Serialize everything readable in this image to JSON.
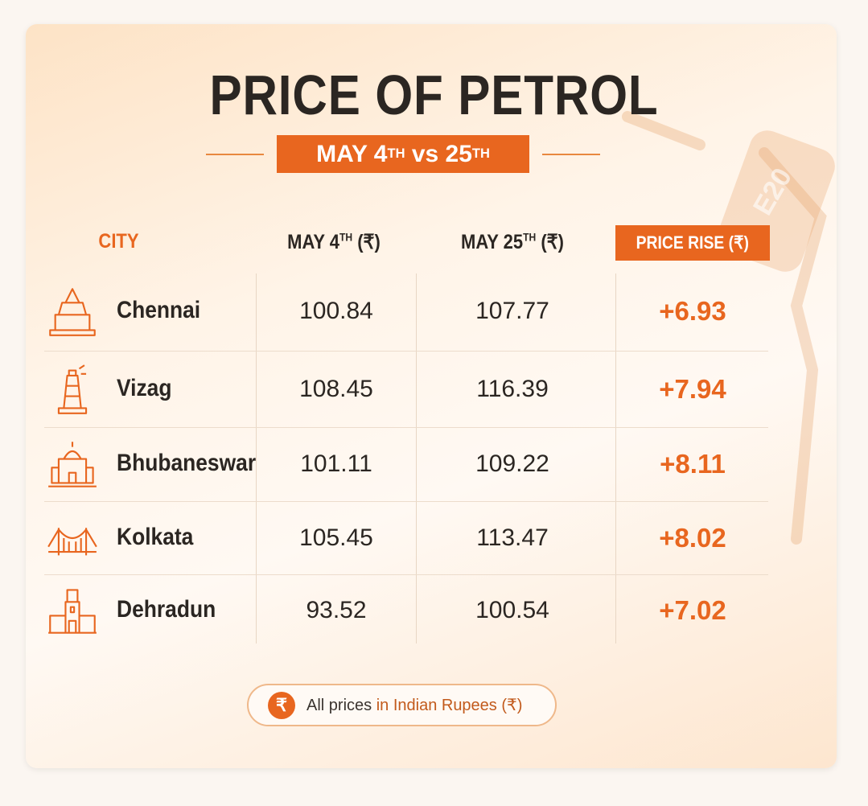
{
  "header": {
    "title": "PRICE OF PETROL",
    "subtitle": [
      "MAY 4",
      "TH",
      " vs 25",
      "TH"
    ]
  },
  "decoration": {
    "pump_label": "E20"
  },
  "table": {
    "columns": [
      [
        "CITY"
      ],
      [
        "MAY 4",
        "TH",
        " (₹)"
      ],
      [
        "MAY 25",
        "TH",
        " (₹)"
      ],
      [
        "PRICE RISE (₹)"
      ]
    ],
    "rows": [
      [
        "Chennai",
        100.84,
        107.77,
        "+6.93"
      ],
      [
        "Vizag",
        108.45,
        116.39,
        "+7.94"
      ],
      [
        "Bhubaneswar",
        101.11,
        109.22,
        "+8.11"
      ],
      [
        "Kolkata",
        105.45,
        113.47,
        "+8.02"
      ],
      [
        "Dehradun",
        93.52,
        100.54,
        "+7.02"
      ]
    ]
  },
  "footer": {
    "icon": "₹",
    "note": [
      "All prices",
      " in Indian Rupees (₹)"
    ]
  }
}
